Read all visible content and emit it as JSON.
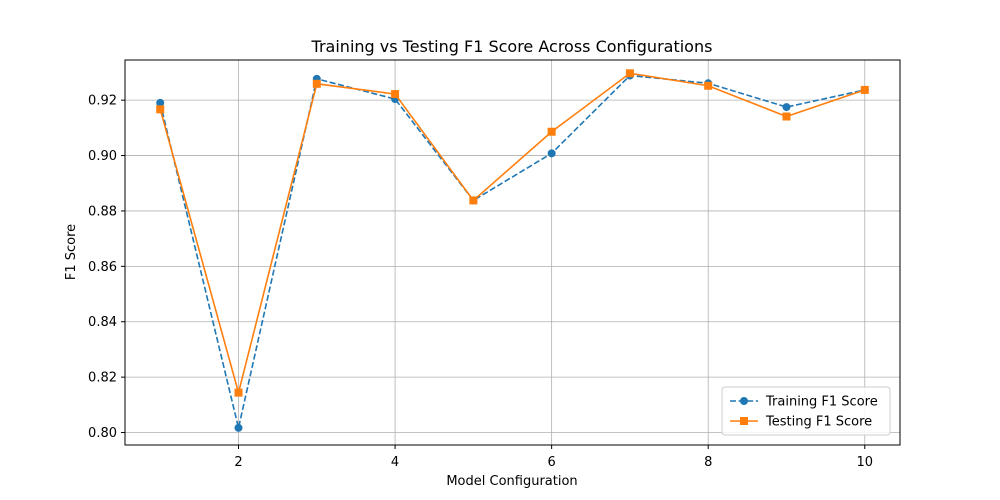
{
  "chart_data": {
    "type": "line",
    "title": "Training vs Testing F1 Score Across Configurations",
    "xlabel": "Model Configuration",
    "ylabel": "F1 Score",
    "xlim": [
      0.55,
      10.45
    ],
    "ylim": [
      0.7955,
      0.9345
    ],
    "xticks": [
      2,
      4,
      6,
      8,
      10
    ],
    "xtick_labels": [
      "2",
      "4",
      "6",
      "8",
      "10"
    ],
    "yticks": [
      0.8,
      0.82,
      0.84,
      0.86,
      0.88,
      0.9,
      0.92
    ],
    "ytick_labels": [
      "0.80",
      "0.82",
      "0.84",
      "0.86",
      "0.88",
      "0.90",
      "0.92"
    ],
    "grid": true,
    "legend_position": "lower-right",
    "x": [
      1,
      2,
      3,
      4,
      5,
      6,
      7,
      8,
      9,
      10
    ],
    "series": [
      {
        "name": "Training F1 Score",
        "color": "#1f77b4",
        "line_style": "dashed",
        "marker": "circle",
        "values": [
          0.919,
          0.8017,
          0.9277,
          0.9204,
          0.8838,
          0.9008,
          0.9289,
          0.9261,
          0.9175,
          0.9237
        ]
      },
      {
        "name": "Testing F1 Score",
        "color": "#ff7f0e",
        "line_style": "solid",
        "marker": "square",
        "values": [
          0.9167,
          0.8144,
          0.9259,
          0.9222,
          0.8838,
          0.9086,
          0.9297,
          0.9252,
          0.9141,
          0.9237
        ]
      }
    ]
  }
}
